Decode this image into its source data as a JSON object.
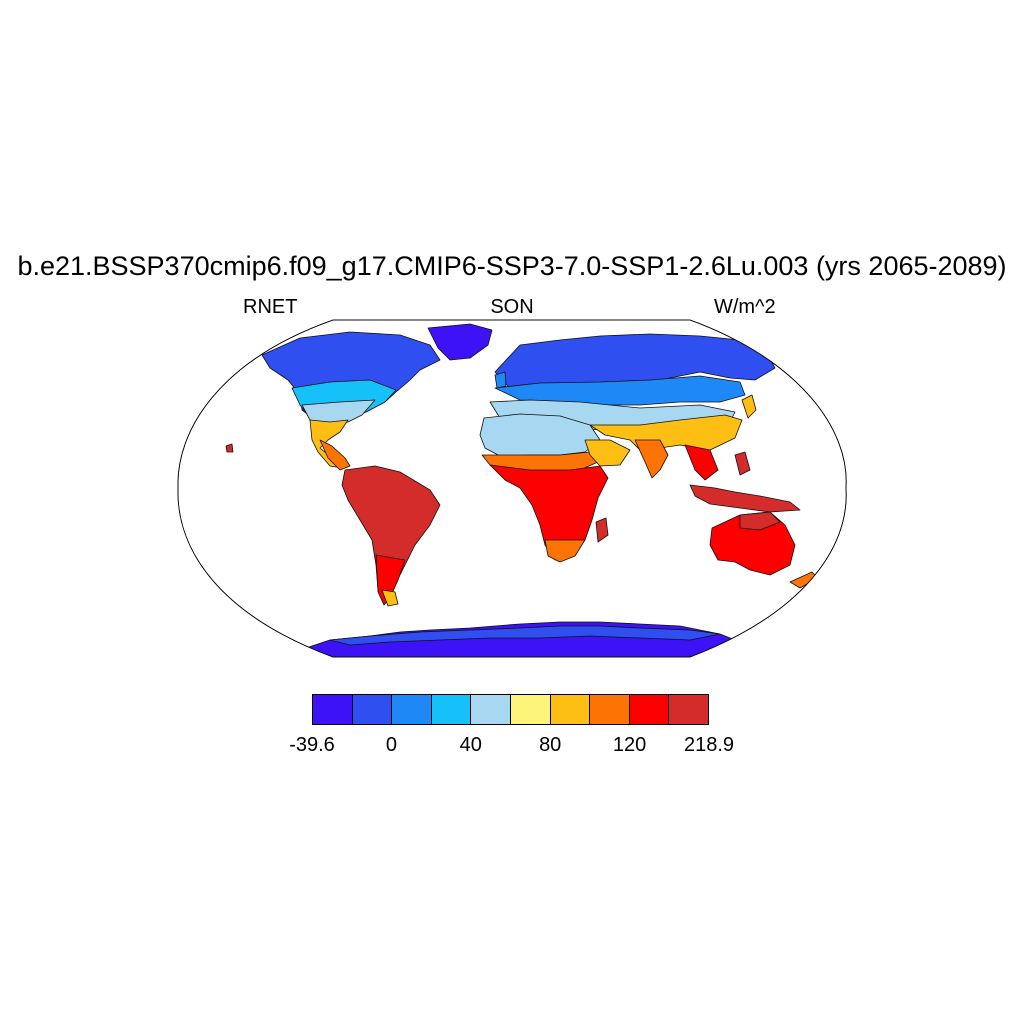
{
  "map": {
    "title": "b.e21.BSSP370cmip6.f09_g17.CMIP6-SSP3-7.0-SSP1-2.6Lu.003 (yrs 2065-2089)",
    "variable": "RNET",
    "season": "SON",
    "units": "W/m^2",
    "projection": "robinson-like",
    "colorbar": {
      "colors": [
        "#3e12f7",
        "#2f4ff0",
        "#1f88f7",
        "#16c0f9",
        "#a8d7f1",
        "#fdf57a",
        "#fdbf13",
        "#fd7304",
        "#fc0100",
        "#d32c2a"
      ],
      "labels": [
        "-39.6",
        "0",
        "40",
        "80",
        "120",
        "218.9"
      ]
    }
  }
}
